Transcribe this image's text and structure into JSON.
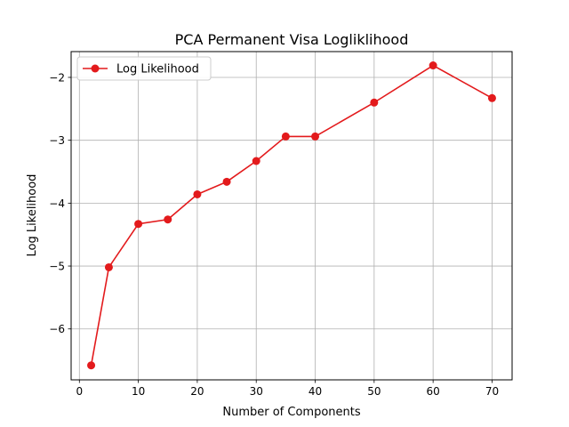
{
  "chart_data": {
    "type": "line",
    "title": "PCA Permanent Visa Logliklihood",
    "xlabel": "Number of Components",
    "ylabel": "Log Likelihood",
    "xlim": [
      -1.4,
      73.4
    ],
    "ylim": [
      -6.81,
      -1.59
    ],
    "xticks": [
      0,
      10,
      20,
      30,
      40,
      50,
      60,
      70
    ],
    "xtick_labels": [
      "0",
      "10",
      "20",
      "30",
      "40",
      "50",
      "60",
      "70"
    ],
    "yticks": [
      -6,
      -5,
      -4,
      -3,
      -2
    ],
    "ytick_labels": [
      "−6",
      "−5",
      "−4",
      "−3",
      "−2"
    ],
    "grid": true,
    "legend_position": "upper left",
    "series": [
      {
        "name": "Log Likelihood",
        "color": "#e31a1c",
        "marker": "circle",
        "x": [
          2,
          5,
          10,
          15,
          20,
          25,
          30,
          35,
          40,
          50,
          60,
          70
        ],
        "y": [
          -6.58,
          -5.02,
          -4.33,
          -4.26,
          -3.86,
          -3.66,
          -3.33,
          -2.94,
          -2.94,
          -2.4,
          -1.81,
          -2.33
        ]
      }
    ]
  }
}
